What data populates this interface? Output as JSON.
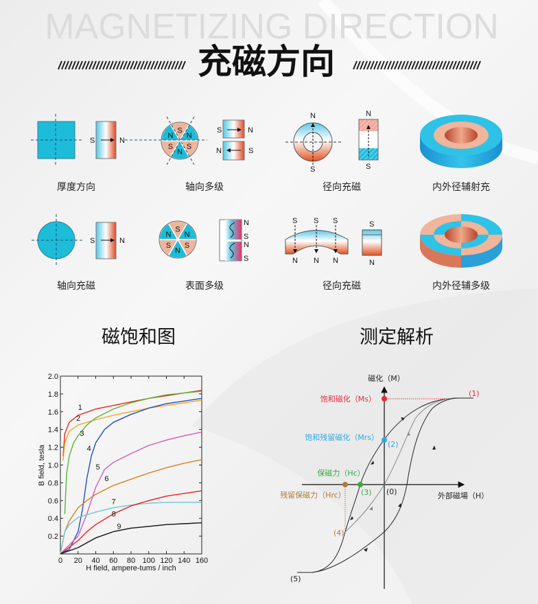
{
  "header": {
    "watermark": "MAGNETIZING DIRECTION",
    "title": "充磁方向"
  },
  "colors": {
    "cyan": "#1dbcd8",
    "salmon": "#efb59c",
    "red": "#e2461c",
    "ms": "#e8293b",
    "mrs": "#2ea8e2",
    "hc": "#3aaa46",
    "hrc": "#b07a3c"
  },
  "poles": {
    "n": "N",
    "s": "S"
  },
  "types": [
    {
      "label": "厚度方向"
    },
    {
      "label": "轴向多级"
    },
    {
      "label": "径向充磁"
    },
    {
      "label": "内外径辅射充"
    },
    {
      "label": "轴向充磁"
    },
    {
      "label": "表面多级"
    },
    {
      "label": "径向充磁"
    },
    {
      "label": "内外径辅多级"
    }
  ],
  "sections": {
    "saturation": "磁饱和图",
    "analysis": "测定解析"
  },
  "chart_data": {
    "type": "line",
    "xlabel": "H field, ampere-tums / inch",
    "ylabel": "B field, tesla",
    "xlim": [
      0,
      160
    ],
    "ylim": [
      0,
      2.0
    ],
    "xticks": [
      0,
      20,
      40,
      60,
      80,
      100,
      120,
      140,
      160
    ],
    "yticks": [
      "0.2",
      "0.4",
      "0.6",
      "0.8",
      "1.0",
      "1.2",
      "1.4",
      "1.6",
      "1.8",
      "2.0"
    ],
    "grid": false,
    "series": [
      {
        "name": "1",
        "color": "#e8231f",
        "points": [
          [
            3,
            1.1
          ],
          [
            5,
            1.35
          ],
          [
            10,
            1.48
          ],
          [
            20,
            1.56
          ],
          [
            40,
            1.63
          ],
          [
            60,
            1.67
          ],
          [
            80,
            1.71
          ],
          [
            100,
            1.75
          ],
          [
            120,
            1.78
          ],
          [
            140,
            1.81
          ],
          [
            160,
            1.84
          ]
        ]
      },
      {
        "name": "2",
        "color": "#f4a21c",
        "points": [
          [
            3,
            1.05
          ],
          [
            5,
            1.25
          ],
          [
            10,
            1.38
          ],
          [
            20,
            1.45
          ],
          [
            40,
            1.51
          ],
          [
            60,
            1.56
          ],
          [
            80,
            1.6
          ],
          [
            100,
            1.64
          ],
          [
            120,
            1.67
          ],
          [
            140,
            1.7
          ],
          [
            160,
            1.73
          ]
        ]
      },
      {
        "name": "3",
        "color": "#5bb535",
        "points": [
          [
            5,
            0.45
          ],
          [
            7,
            0.9
          ],
          [
            10,
            1.1
          ],
          [
            15,
            1.25
          ],
          [
            20,
            1.33
          ],
          [
            30,
            1.45
          ],
          [
            40,
            1.53
          ],
          [
            60,
            1.63
          ],
          [
            80,
            1.7
          ],
          [
            100,
            1.75
          ],
          [
            120,
            1.79
          ],
          [
            140,
            1.81
          ],
          [
            160,
            1.83
          ]
        ]
      },
      {
        "name": "4",
        "color": "#1f4fc4",
        "points": [
          [
            0,
            0
          ],
          [
            10,
            0.05
          ],
          [
            20,
            0.25
          ],
          [
            25,
            0.5
          ],
          [
            30,
            0.85
          ],
          [
            35,
            1.1
          ],
          [
            40,
            1.25
          ],
          [
            50,
            1.4
          ],
          [
            60,
            1.48
          ],
          [
            80,
            1.57
          ],
          [
            100,
            1.64
          ],
          [
            120,
            1.69
          ],
          [
            140,
            1.72
          ],
          [
            160,
            1.75
          ]
        ]
      },
      {
        "name": "5",
        "color": "#d25bb5",
        "points": [
          [
            0,
            0
          ],
          [
            20,
            0.2
          ],
          [
            30,
            0.45
          ],
          [
            40,
            0.75
          ],
          [
            50,
            0.95
          ],
          [
            60,
            1.03
          ],
          [
            80,
            1.13
          ],
          [
            100,
            1.22
          ],
          [
            120,
            1.28
          ],
          [
            140,
            1.33
          ],
          [
            160,
            1.37
          ]
        ]
      },
      {
        "name": "6",
        "color": "#d4821e",
        "points": [
          [
            0,
            0
          ],
          [
            5,
            0.25
          ],
          [
            10,
            0.37
          ],
          [
            20,
            0.52
          ],
          [
            30,
            0.6
          ],
          [
            40,
            0.67
          ],
          [
            60,
            0.77
          ],
          [
            80,
            0.84
          ],
          [
            100,
            0.91
          ],
          [
            120,
            0.97
          ],
          [
            140,
            1.02
          ],
          [
            160,
            1.06
          ]
        ]
      },
      {
        "name": "7",
        "color": "#6cc9d2",
        "points": [
          [
            0,
            0
          ],
          [
            5,
            0.25
          ],
          [
            10,
            0.33
          ],
          [
            20,
            0.41
          ],
          [
            40,
            0.47
          ],
          [
            60,
            0.52
          ],
          [
            80,
            0.55
          ],
          [
            100,
            0.57
          ],
          [
            120,
            0.58
          ],
          [
            140,
            0.58
          ],
          [
            160,
            0.58
          ]
        ]
      },
      {
        "name": "8",
        "color": "#ea1f1f",
        "points": [
          [
            0,
            0
          ],
          [
            20,
            0.15
          ],
          [
            30,
            0.25
          ],
          [
            40,
            0.33
          ],
          [
            60,
            0.45
          ],
          [
            80,
            0.54
          ],
          [
            100,
            0.6
          ],
          [
            120,
            0.65
          ],
          [
            140,
            0.68
          ],
          [
            160,
            0.71
          ]
        ]
      },
      {
        "name": "9",
        "color": "#111111",
        "points": [
          [
            0,
            0
          ],
          [
            20,
            0.07
          ],
          [
            40,
            0.18
          ],
          [
            60,
            0.25
          ],
          [
            80,
            0.29
          ],
          [
            100,
            0.31
          ],
          [
            120,
            0.33
          ],
          [
            140,
            0.34
          ],
          [
            160,
            0.35
          ]
        ]
      }
    ]
  },
  "hysteresis": {
    "y_axis": "磁化（M）",
    "x_axis": "外部磁場（H）",
    "ms": "饱和磁化（Ms）",
    "mrs": "饱和残留磁化（Mrs）",
    "hc": "保磁力（Hc）",
    "hrc": "残留保磁力（Hrc）",
    "p0": "(0)",
    "p1": "(1)",
    "p2": "(2)",
    "p3": "(3)",
    "p4": "(4)",
    "p5": "(5)"
  }
}
